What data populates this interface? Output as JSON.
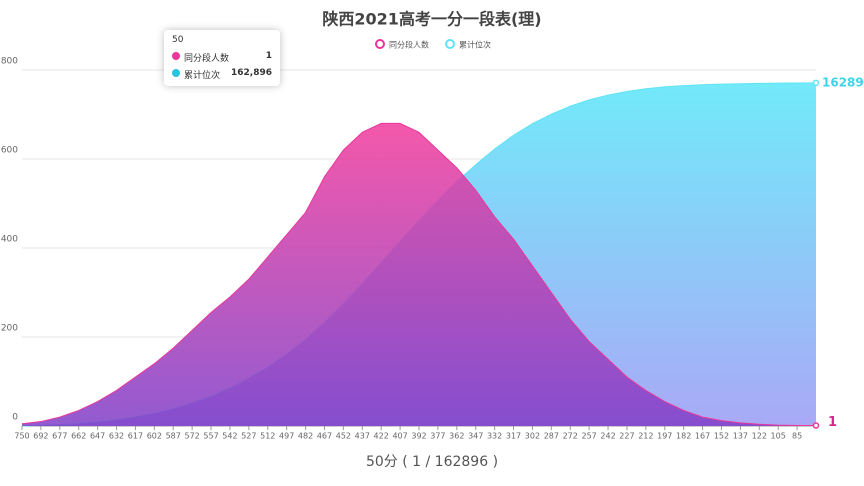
{
  "chart_data": {
    "type": "area",
    "title": "陕西2021高考一分一段表(理)",
    "footer": "50分 ( 1 / 162896 )",
    "categories": [
      "750",
      "692",
      "677",
      "662",
      "647",
      "632",
      "617",
      "602",
      "587",
      "572",
      "557",
      "542",
      "527",
      "512",
      "497",
      "482",
      "467",
      "452",
      "437",
      "422",
      "407",
      "392",
      "377",
      "362",
      "347",
      "332",
      "317",
      "302",
      "287",
      "272",
      "257",
      "242",
      "227",
      "212",
      "197",
      "182",
      "167",
      "152",
      "137",
      "122",
      "105",
      "85",
      null
    ],
    "series": [
      {
        "name": "同分段人数",
        "color": "#e8389a",
        "values": [
          5,
          10,
          20,
          35,
          55,
          80,
          110,
          140,
          175,
          215,
          255,
          290,
          330,
          380,
          430,
          480,
          560,
          620,
          660,
          680,
          680,
          660,
          620,
          580,
          530,
          470,
          420,
          360,
          300,
          240,
          190,
          150,
          110,
          80,
          55,
          35,
          20,
          12,
          7,
          4,
          2,
          1,
          1
        ]
      },
      {
        "name": "累计位次",
        "color": "#5fe3f5",
        "axis": "y2",
        "values": [
          5,
          300,
          600,
          1100,
          1800,
          2800,
          4200,
          5900,
          8100,
          10800,
          14000,
          17900,
          22500,
          27800,
          34000,
          41000,
          49000,
          58000,
          67500,
          77500,
          87600,
          97500,
          107000,
          116000,
          124000,
          131500,
          138000,
          143500,
          148000,
          151800,
          154800,
          157100,
          158800,
          160100,
          161000,
          161600,
          162000,
          162300,
          162500,
          162650,
          162750,
          162850,
          162896
        ]
      }
    ],
    "ylim": [
      0,
      800
    ],
    "yticks": [
      0,
      200,
      400,
      600,
      800
    ],
    "y2lim": [
      0,
      169000
    ],
    "grid": true,
    "legend": "top",
    "tooltip": {
      "title": "50",
      "rows": [
        {
          "name": "同分段人数",
          "value": "1"
        },
        {
          "name": "累计位次",
          "value": "162,896"
        }
      ]
    }
  }
}
